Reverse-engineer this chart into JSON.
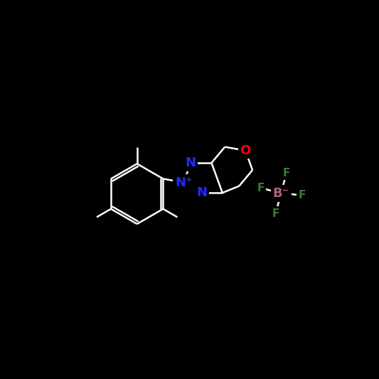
{
  "background": "#000000",
  "white": "#ffffff",
  "atom_colors": {
    "N": "#2626ff",
    "O": "#ff0000",
    "B": "#b06070",
    "F": "#3a7a3a"
  },
  "figsize": [
    5.33,
    5.33
  ],
  "dpi": 100,
  "lw": 1.8,
  "lw_double": 1.8,
  "font_size_atom": 13,
  "font_size_f": 11
}
